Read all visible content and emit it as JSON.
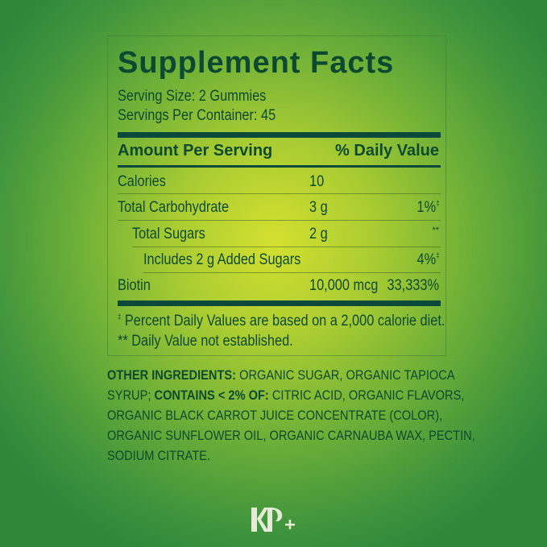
{
  "title": "Supplement Facts",
  "serving_size": "Serving Size: 2 Gummies",
  "servings_per_container": "Servings Per Container: 45",
  "header": {
    "amount": "Amount Per Serving",
    "dv": "% Daily Value"
  },
  "rows": [
    {
      "name": "Calories",
      "amount": "10",
      "dv": "",
      "mark": ""
    },
    {
      "name": "Total Carbohydrate",
      "amount": "3 g",
      "dv": "1%",
      "mark": "‡"
    },
    {
      "name": "Total Sugars",
      "amount": "2 g",
      "dv": "",
      "mark": "**"
    },
    {
      "name": "Includes 2 g Added Sugars",
      "amount": "",
      "dv": "4%",
      "mark": "‡"
    },
    {
      "name": "Biotin",
      "amount": "10,000 mcg",
      "dv": "33,333%",
      "mark": ""
    }
  ],
  "footnotes": {
    "f1_mark": "‡",
    "f1": "Percent Daily Values are based on a 2,000 calorie diet.",
    "f2": "** Daily Value not established."
  },
  "ingredients": {
    "l1_bold": "OTHER INGREDIENTS:",
    "l1": " ORGANIC SUGAR, ORGANIC TAPIOCA",
    "l2_a": "SYRUP; ",
    "l2_bold": "CONTAINS < 2% OF:",
    "l2": " CITRIC ACID, ORGANIC FLAVORS,",
    "l3": "ORGANIC BLACK CARROT JUICE CONCENTRATE (COLOR),",
    "l4": "ORGANIC SUNFLOWER OIL, ORGANIC CARNAUBA WAX, PECTIN,",
    "l5": "SODIUM CITRATE."
  },
  "logo_text": "KP+",
  "colors": {
    "text": "#0d4a2e",
    "logo": "#e4ecd8"
  }
}
